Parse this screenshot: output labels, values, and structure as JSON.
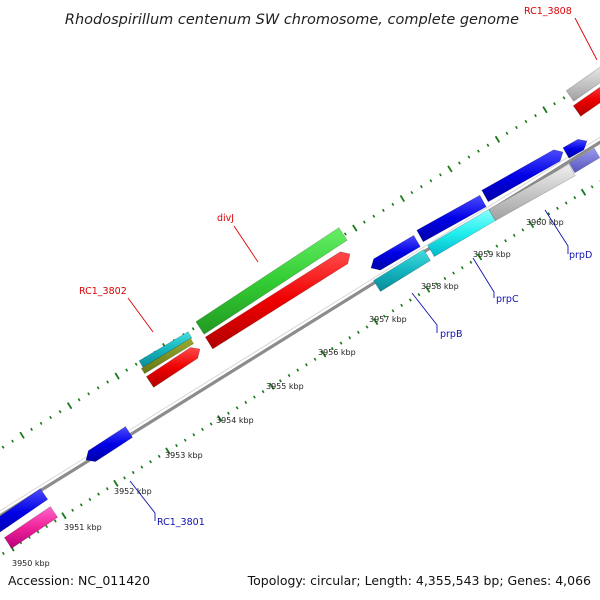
{
  "title": "Rhodospirillum centenum SW chromosome, complete genome",
  "footer": {
    "accession": "Accession: NC_011420",
    "summary": "Topology: circular; Length: 4,355,543 bp; Genes: 4,066"
  },
  "colors": {
    "label_red": "#dd0000",
    "label_blue": "#1010b0",
    "backbone": "#888888",
    "tick": "#1a7a1a"
  },
  "ticks": [
    {
      "label": "3950 kbp"
    },
    {
      "label": "3951 kbp"
    },
    {
      "label": "3952 kbp"
    },
    {
      "label": "3953 kbp"
    },
    {
      "label": "3954 kbp"
    },
    {
      "label": "3955 kbp"
    },
    {
      "label": "3956 kbp"
    },
    {
      "label": "3957 kbp"
    },
    {
      "label": "3958 kbp"
    },
    {
      "label": "3959 kbp"
    },
    {
      "label": "3960 kbp"
    }
  ],
  "gene_labels": [
    {
      "text": "RC1_3808",
      "color": "#dd0000"
    },
    {
      "text": "divJ",
      "color": "#dd0000"
    },
    {
      "text": "RC1_3802",
      "color": "#dd0000"
    },
    {
      "text": "prpD",
      "color": "#1010b0"
    },
    {
      "text": "prpC",
      "color": "#1010b0"
    },
    {
      "text": "prpB",
      "color": "#1010b0"
    },
    {
      "text": "RC1_3801",
      "color": "#1010b0"
    }
  ]
}
